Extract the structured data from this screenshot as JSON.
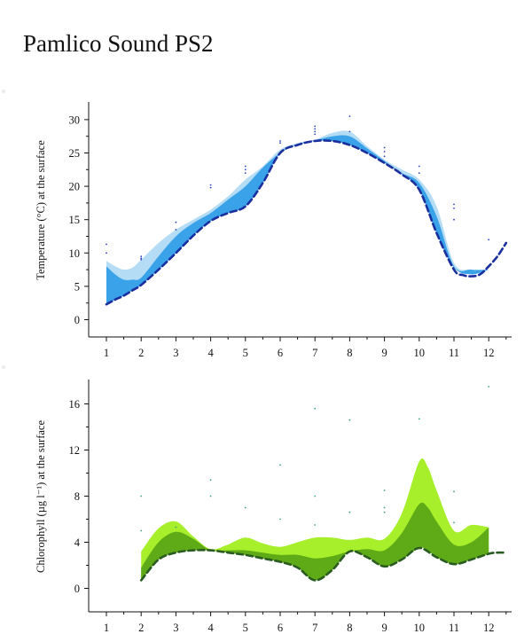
{
  "page": {
    "title": "Pamlico Sound PS2"
  },
  "chart_data": [
    {
      "type": "area",
      "ylabel": "Temperature (°C) at the surface",
      "xlabel": "",
      "xlim": [
        0.8,
        12.5
      ],
      "ylim": [
        -2,
        32
      ],
      "x_ticks": [
        1,
        2,
        3,
        4,
        5,
        6,
        7,
        8,
        9,
        10,
        11,
        12
      ],
      "y_ticks": [
        0,
        5,
        10,
        15,
        20,
        25,
        30
      ],
      "colors": {
        "outer": "#b5dcf5",
        "inner": "#3aa2e8",
        "line": "#1b2e9e",
        "points": "#2a3fc0"
      },
      "bands": {
        "outer": {
          "x": [
            1,
            1.25,
            1.5,
            1.75,
            2,
            2.5,
            3,
            3.5,
            4,
            4.5,
            5,
            5.5,
            6,
            6.5,
            7,
            7.5,
            8,
            8.5,
            9,
            9.5,
            10,
            10.5,
            11,
            11.5,
            12
          ],
          "upper": [
            8.8,
            8,
            7.5,
            7.8,
            9,
            11.5,
            13.5,
            15,
            16.5,
            18.5,
            21,
            23,
            25.5,
            26.5,
            27,
            28,
            28.2,
            26,
            24,
            22.5,
            21,
            17,
            8.5,
            7.5,
            7.5
          ],
          "lower": [
            2.3,
            3,
            3.6,
            4.4,
            5.2,
            7.5,
            10,
            12.6,
            14.8,
            16,
            17,
            20.5,
            25,
            26.2,
            26.8,
            26.8,
            26.2,
            25,
            23.5,
            21.8,
            19.5,
            13,
            7.8,
            6.8,
            7.5
          ]
        },
        "inner": {
          "x": [
            1,
            1.25,
            1.5,
            1.75,
            2,
            2.5,
            3,
            3.5,
            4,
            4.5,
            5,
            5.5,
            6,
            6.5,
            7,
            7.5,
            8,
            8.5,
            9,
            9.5,
            10,
            10.5,
            11,
            11.5,
            12
          ],
          "upper": [
            8,
            6.8,
            6,
            6,
            6.3,
            9.5,
            12.5,
            14.5,
            16,
            18,
            20,
            22.8,
            25,
            26.3,
            26.9,
            27.5,
            27.5,
            25.7,
            23.8,
            22,
            20.5,
            15.5,
            8,
            7.5,
            7.5
          ],
          "lower": [
            2.3,
            3,
            3.6,
            4.4,
            5.2,
            7.5,
            10,
            12.6,
            14.8,
            16,
            17,
            20.5,
            25,
            26.2,
            26.8,
            26.8,
            26.2,
            25,
            23.5,
            21.8,
            19.5,
            13,
            7.8,
            6.8,
            7.5
          ]
        }
      },
      "series": [
        {
          "x": [
            1,
            1.25,
            1.5,
            1.75,
            2,
            2.5,
            3,
            3.5,
            4,
            4.5,
            5,
            5.5,
            6,
            6.5,
            7,
            7.5,
            8,
            8.5,
            9,
            9.5,
            10,
            10.5,
            11,
            11.25,
            11.5,
            11.75,
            12,
            12.25,
            12.5
          ],
          "values": [
            2.3,
            3,
            3.6,
            4.4,
            5.2,
            7.5,
            10,
            12.6,
            14.8,
            16,
            17,
            20.5,
            25,
            26.2,
            26.8,
            26.8,
            26.2,
            25,
            23.5,
            21.8,
            19.5,
            13,
            7.5,
            6.7,
            6.5,
            6.8,
            8,
            9.5,
            11.5
          ]
        }
      ],
      "points": [
        [
          1,
          11.3
        ],
        [
          1,
          10
        ],
        [
          2,
          9.5
        ],
        [
          2,
          9.2
        ],
        [
          2,
          9
        ],
        [
          3,
          14.6
        ],
        [
          3,
          13.5
        ],
        [
          4,
          20.2
        ],
        [
          4,
          19.8
        ],
        [
          5,
          23
        ],
        [
          5,
          22.5
        ],
        [
          5,
          22
        ],
        [
          6,
          26.8
        ],
        [
          6,
          26.5
        ],
        [
          7,
          29
        ],
        [
          7,
          28.6
        ],
        [
          7,
          28.2
        ],
        [
          7,
          27.8
        ],
        [
          8,
          30.5
        ],
        [
          8,
          28.2
        ],
        [
          9,
          25.8
        ],
        [
          9,
          25.2
        ],
        [
          9,
          24.5
        ],
        [
          10,
          23
        ],
        [
          10,
          22
        ],
        [
          11,
          17.3
        ],
        [
          11,
          16.7
        ],
        [
          11,
          15
        ],
        [
          12,
          12
        ]
      ]
    },
    {
      "type": "area",
      "ylabel": "Chlorophyll (µg l⁻¹) at the surface",
      "xlabel": "",
      "xlim": [
        0.8,
        12.5
      ],
      "ylim": [
        -2,
        18
      ],
      "x_ticks": [
        1,
        2,
        3,
        4,
        5,
        6,
        7,
        8,
        9,
        10,
        11,
        12
      ],
      "y_ticks": [
        0,
        4,
        8,
        12,
        16
      ],
      "colors": {
        "outer": "#a6ef2a",
        "inner": "#5faa17",
        "line": "#2a5c22",
        "points": "#3aa088"
      },
      "bands": {
        "outer": {
          "x": [
            2,
            2.5,
            3,
            3.5,
            4,
            4.5,
            5,
            5.5,
            6,
            6.5,
            7,
            7.5,
            8,
            8.5,
            9,
            9.5,
            10,
            10.25,
            10.5,
            11,
            11.5,
            12
          ],
          "upper": [
            3.2,
            5.2,
            5.8,
            4.5,
            3.4,
            3.8,
            4.4,
            3.9,
            3.6,
            4,
            4.4,
            4.4,
            4.2,
            4.4,
            4.3,
            6.5,
            11,
            10.5,
            8.5,
            5,
            5.5,
            5.3
          ],
          "lower": [
            0.7,
            2.5,
            3.1,
            3.3,
            3.3,
            3.1,
            2.9,
            2.6,
            2.3,
            1.8,
            0.7,
            1.6,
            3.2,
            2.7,
            1.9,
            2.5,
            3.5,
            3.3,
            2.7,
            2.1,
            2.5,
            3
          ]
        },
        "inner": {
          "x": [
            2,
            2.5,
            3,
            3.5,
            4,
            4.5,
            5,
            5.5,
            6,
            6.5,
            7,
            7.5,
            8,
            8.5,
            9,
            9.5,
            10,
            10.25,
            10.5,
            11,
            11.5,
            12
          ],
          "upper": [
            1.8,
            4,
            4.9,
            4.3,
            3.3,
            3.3,
            3.3,
            3.1,
            2.9,
            2.9,
            2.6,
            2.8,
            3.2,
            3.4,
            3.3,
            4.8,
            7.3,
            7,
            5.8,
            3.8,
            4,
            5.3
          ],
          "lower": [
            0.7,
            2.5,
            3.1,
            3.3,
            3.3,
            3.1,
            2.9,
            2.6,
            2.3,
            1.8,
            0.7,
            1.6,
            3.2,
            2.7,
            1.9,
            2.5,
            3.5,
            3.3,
            2.7,
            2.1,
            2.5,
            3
          ]
        }
      },
      "series": [
        {
          "x": [
            2,
            2.5,
            3,
            3.5,
            4,
            4.5,
            5,
            5.5,
            6,
            6.5,
            7,
            7.5,
            8,
            8.5,
            9,
            9.5,
            10,
            10.5,
            11,
            11.5,
            12,
            12.25,
            12.5
          ],
          "values": [
            0.7,
            2.5,
            3.1,
            3.3,
            3.3,
            3.1,
            2.9,
            2.6,
            2.3,
            1.8,
            0.7,
            1.6,
            3.2,
            2.7,
            1.9,
            2.5,
            3.5,
            2.7,
            2.1,
            2.5,
            3,
            3.1,
            3.1
          ]
        }
      ],
      "points": [
        [
          2,
          8
        ],
        [
          2,
          5
        ],
        [
          3,
          5.3
        ],
        [
          4,
          9.4
        ],
        [
          4,
          8
        ],
        [
          5,
          7
        ],
        [
          6,
          10.7
        ],
        [
          6,
          6
        ],
        [
          7,
          15.6
        ],
        [
          7,
          8
        ],
        [
          7,
          5.5
        ],
        [
          8,
          14.6
        ],
        [
          8,
          6.6
        ],
        [
          9,
          8.5
        ],
        [
          9,
          7
        ],
        [
          9,
          6.6
        ],
        [
          10,
          14.7
        ],
        [
          11,
          8.4
        ],
        [
          11,
          5.7
        ],
        [
          12,
          17.5
        ]
      ]
    }
  ]
}
